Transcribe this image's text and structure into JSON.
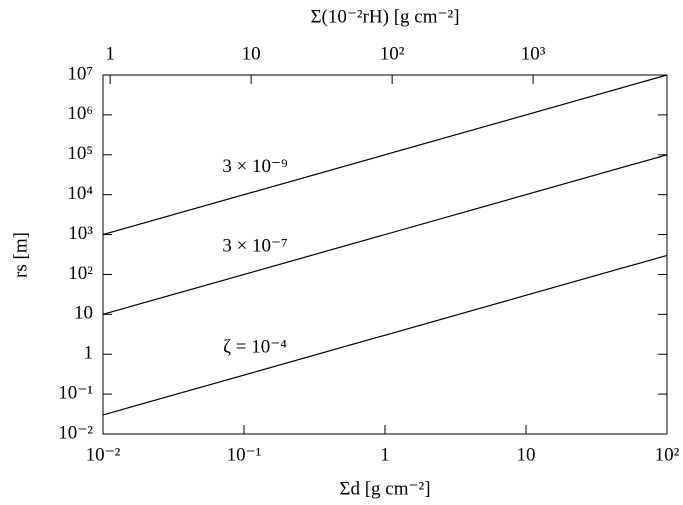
{
  "chart_data": {
    "type": "line",
    "log_x": true,
    "log_y": true,
    "xlabel": "Σd [g cm⁻²]",
    "ylabel": "rs [m]",
    "x2label": "Σ(10⁻²rH) [g cm⁻²]",
    "xlim": [
      0.01,
      100
    ],
    "xticks": [
      {
        "value": 0.01,
        "label": "10⁻²"
      },
      {
        "value": 0.1,
        "label": "10⁻¹"
      },
      1,
      10,
      {
        "value": 100,
        "label": "10²"
      }
    ],
    "x2lim": [
      0.89,
      8900
    ],
    "x2ticks": [
      1,
      10,
      {
        "value": 100,
        "label": "10²"
      },
      {
        "value": 1000,
        "label": "10³"
      }
    ],
    "ylim": [
      0.01,
      10000000
    ],
    "yticks": [
      {
        "value": 0.01,
        "label": "10⁻²"
      },
      {
        "value": 0.1,
        "label": "10⁻¹"
      },
      1,
      10,
      {
        "value": 100,
        "label": "10²"
      },
      {
        "value": 1000,
        "label": "10³"
      },
      {
        "value": 10000,
        "label": "10⁴"
      },
      {
        "value": 100000,
        "label": "10⁵"
      },
      {
        "value": 1000000,
        "label": "10⁶"
      },
      {
        "value": 10000000,
        "label": "10⁷"
      }
    ],
    "series": [
      {
        "name": "3 × 10⁻⁹",
        "color": "#000000",
        "x": [
          0.01,
          100
        ],
        "values": [
          1000,
          10000000
        ]
      },
      {
        "name": "3 × 10⁻⁷",
        "color": "#000000",
        "x": [
          0.01,
          100
        ],
        "values": [
          10,
          100000
        ]
      },
      {
        "name": "ζ = 10⁻⁴",
        "color": "#000000",
        "x": [
          0.01,
          100
        ],
        "values": [
          0.03,
          300
        ]
      }
    ]
  }
}
